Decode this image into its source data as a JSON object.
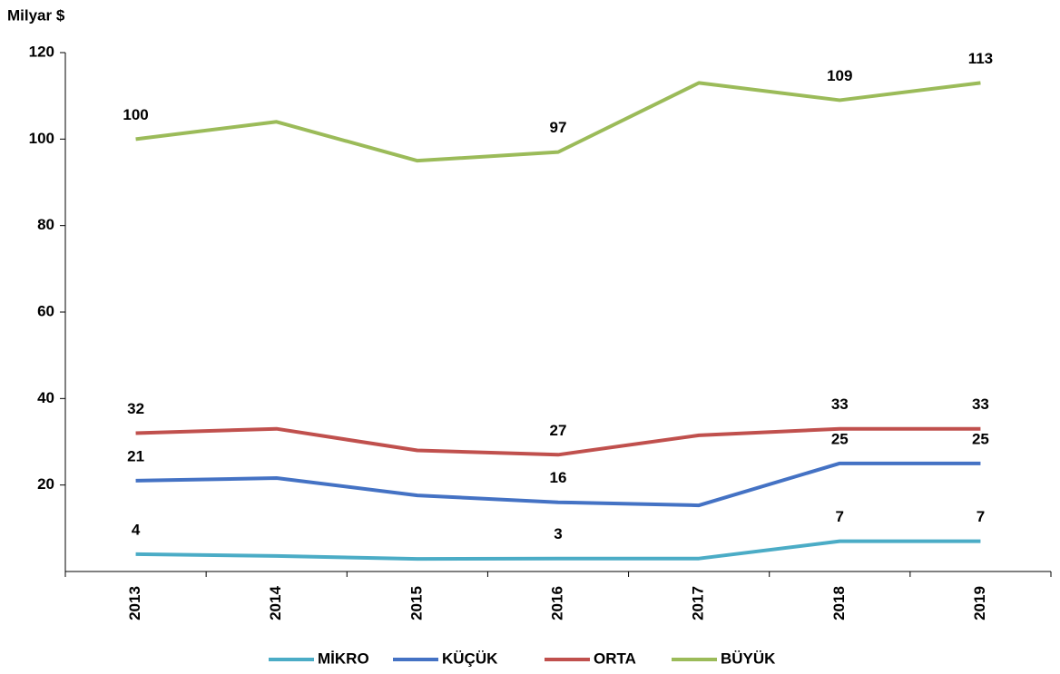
{
  "chart_data": {
    "type": "line",
    "y_axis_label": "Milyar $",
    "categories": [
      "2013",
      "2014",
      "2015",
      "2016",
      "2017",
      "2018",
      "2019"
    ],
    "ylim": [
      0,
      120
    ],
    "yticks": [
      20,
      40,
      60,
      80,
      100,
      120
    ],
    "grid": false,
    "legend": "bottom",
    "series": [
      {
        "name": "MİKRO",
        "color": "#4bacc6",
        "values": [
          4,
          3.6,
          2.9,
          3,
          3,
          7,
          7
        ],
        "value_labels": [
          "4",
          null,
          null,
          "3",
          null,
          "7",
          "7"
        ]
      },
      {
        "name": "KÜÇÜK",
        "color": "#4472c4",
        "values": [
          21,
          21.6,
          17.6,
          16,
          15.3,
          25,
          25
        ],
        "value_labels": [
          "21",
          null,
          null,
          "16",
          null,
          "25",
          "25"
        ]
      },
      {
        "name": "ORTA",
        "color": "#c0504d",
        "values": [
          32,
          33,
          28,
          27,
          31.5,
          33,
          33
        ],
        "value_labels": [
          "32",
          null,
          null,
          "27",
          null,
          "33",
          "33"
        ]
      },
      {
        "name": "BÜYÜK",
        "color": "#9bbb59",
        "values": [
          100,
          104,
          95,
          97,
          113,
          109,
          113
        ],
        "value_labels": [
          "100",
          null,
          null,
          "97",
          null,
          "109",
          "113"
        ]
      }
    ]
  }
}
